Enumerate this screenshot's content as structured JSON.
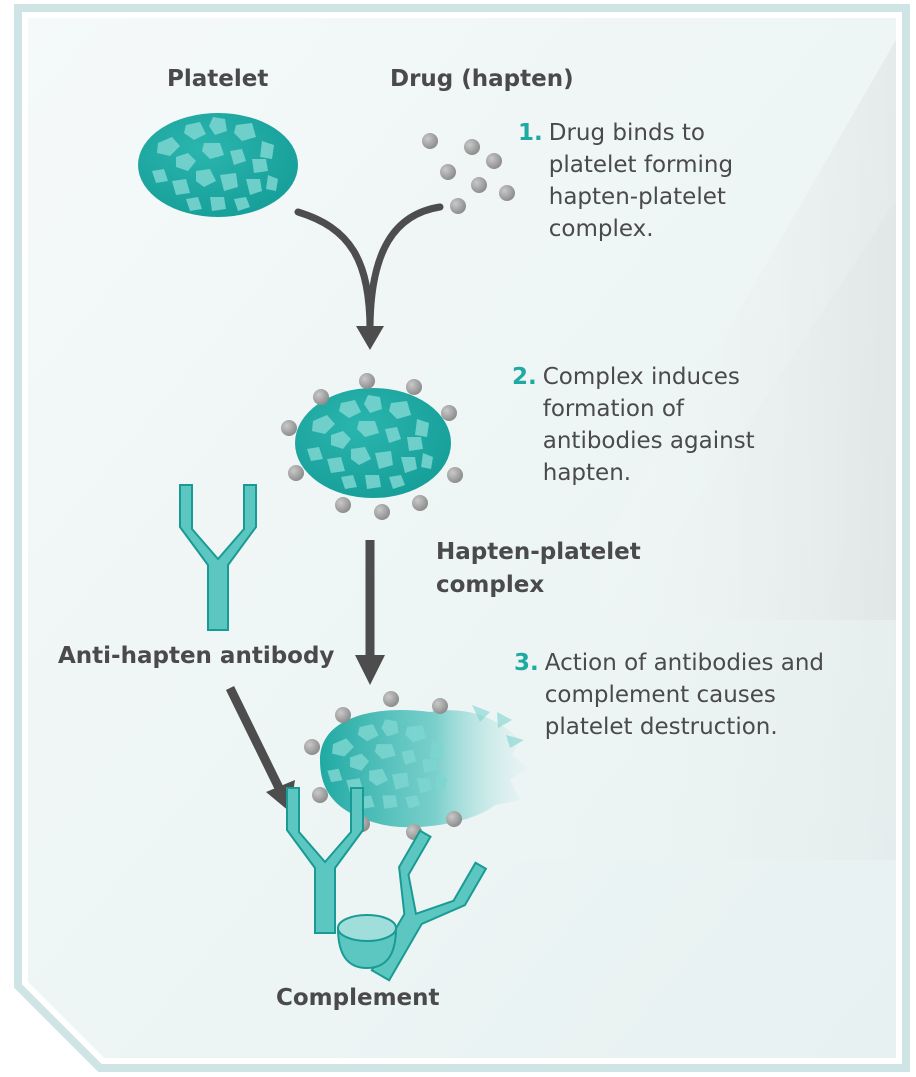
{
  "labels": {
    "platelet": "Platelet",
    "drug": "Drug (hapten)",
    "complex": "Hapten-platelet\ncomplex",
    "antibody": "Anti-hapten antibody",
    "complement": "Complement"
  },
  "steps": [
    {
      "num": "1.",
      "text": "Drug binds to\nplatelet forming\nhapten-platelet\ncomplex."
    },
    {
      "num": "2.",
      "text": "Complex induces\nformation of\nantibodies against\nhapten."
    },
    {
      "num": "3.",
      "text": "Action of antibodies and\ncomplement causes\nplatelet destruction."
    }
  ],
  "colors": {
    "teal": "#1fa9a3",
    "teal_light": "#7fd3cf",
    "granule": "#7dd6d1",
    "grey_dot": "#9e9e9e",
    "arrow": "#4d4d4d",
    "text": "#4a4a4a",
    "panel": "#eef6f6",
    "frame": "#cfe4e4"
  }
}
